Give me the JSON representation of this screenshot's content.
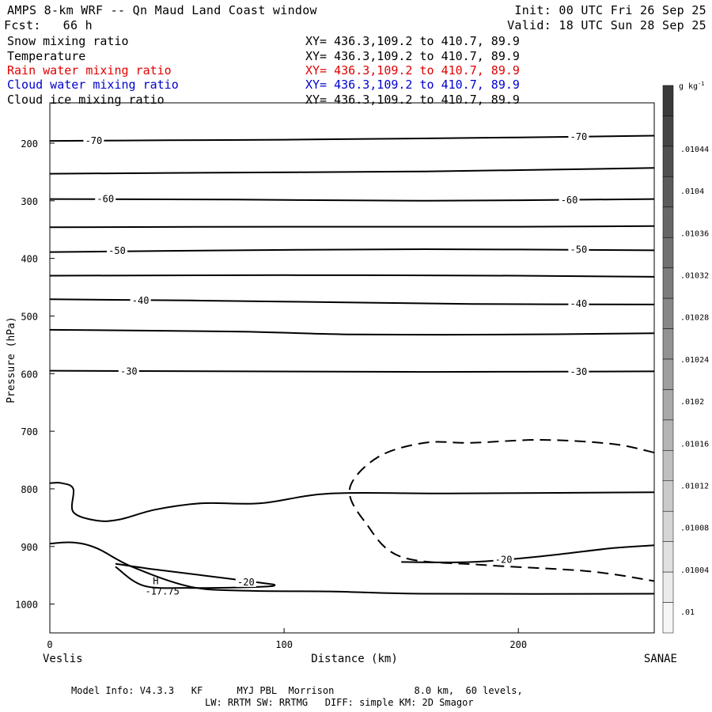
{
  "header": {
    "title": "AMPS 8-km WRF -- Qn Maud Land Coast window",
    "init": "Init: 00 UTC Fri 26 Sep 25",
    "fcst": "Fcst:   66 h",
    "valid": "Valid: 18 UTC Sun 28 Sep 25"
  },
  "legend": [
    {
      "label": "Snow mixing ratio",
      "xy": "XY= 436.3,109.2 to 410.7, 89.9",
      "color": "#000000"
    },
    {
      "label": "Temperature",
      "xy": "XY= 436.3,109.2 to 410.7, 89.9",
      "color": "#000000"
    },
    {
      "label": "Rain water mixing ratio",
      "xy": "XY= 436.3,109.2 to 410.7, 89.9",
      "color": "#e00000"
    },
    {
      "label": "Cloud water mixing ratio",
      "xy": "XY= 436.3,109.2 to 410.7, 89.9",
      "color": "#0000d0"
    },
    {
      "label": "Cloud ice mixing ratio",
      "xy": "XY= 436.3,109.2 to 410.7, 89.9",
      "color": "#000000"
    }
  ],
  "footer": {
    "model_info": "Model Info: V4.3.3   KF      MYJ PBL  Morrison              8.0 km,  60 levels,",
    "physics": "LW: RRTM SW: RRTMG   DIFF: simple KM: 2D Smagor"
  },
  "chart_data": {
    "type": "contour",
    "title": "AMPS 8-km WRF -- Qn Maud Land Coast window",
    "xlabel": "Distance (km)",
    "ylabel": "Pressure (hPa)",
    "xlim": [
      0,
      258
    ],
    "ylim": [
      1050,
      130
    ],
    "x_ticks": [
      0,
      100,
      200
    ],
    "y_ticks": [
      200,
      300,
      400,
      500,
      600,
      700,
      800,
      900,
      1000
    ],
    "y_tick_labels": [
      "200",
      "300",
      "400",
      "500",
      "600",
      "700",
      "800",
      "900",
      "1000"
    ],
    "left_endpoint_label": "Veslis",
    "right_endpoint_label": "SANAE",
    "temperature_contours": [
      {
        "level": -70,
        "label": "-70",
        "points": [
          [
            0,
            196
          ],
          [
            50,
            195
          ],
          [
            100,
            194
          ],
          [
            150,
            192
          ],
          [
            200,
            190
          ],
          [
            258,
            187
          ]
        ],
        "label_positions": [
          [
            15,
            196
          ],
          [
            222,
            189
          ]
        ]
      },
      {
        "level": -65,
        "points": [
          [
            0,
            253
          ],
          [
            80,
            251
          ],
          [
            160,
            249
          ],
          [
            258,
            243
          ]
        ]
      },
      {
        "level": -60,
        "label": "-60",
        "points": [
          [
            0,
            297
          ],
          [
            80,
            298
          ],
          [
            160,
            300
          ],
          [
            258,
            297
          ]
        ],
        "label_positions": [
          [
            20,
            297
          ],
          [
            218,
            299
          ]
        ]
      },
      {
        "level": -55,
        "points": [
          [
            0,
            346
          ],
          [
            100,
            345
          ],
          [
            200,
            345
          ],
          [
            258,
            344
          ]
        ]
      },
      {
        "level": -50,
        "label": "-50",
        "points": [
          [
            0,
            389
          ],
          [
            80,
            386
          ],
          [
            160,
            384
          ],
          [
            258,
            386
          ]
        ],
        "label_positions": [
          [
            25,
            387
          ],
          [
            222,
            385
          ]
        ]
      },
      {
        "level": -45,
        "points": [
          [
            0,
            430
          ],
          [
            100,
            429
          ],
          [
            200,
            430
          ],
          [
            258,
            432
          ]
        ]
      },
      {
        "level": -40,
        "label": "-40",
        "points": [
          [
            0,
            471
          ],
          [
            60,
            473
          ],
          [
            120,
            476
          ],
          [
            180,
            479
          ],
          [
            258,
            480
          ]
        ],
        "label_positions": [
          [
            35,
            473
          ],
          [
            222,
            479
          ]
        ]
      },
      {
        "level": -35,
        "points": [
          [
            0,
            524
          ],
          [
            80,
            527
          ],
          [
            130,
            532
          ],
          [
            200,
            532
          ],
          [
            258,
            530
          ]
        ]
      },
      {
        "level": -30,
        "label": "-30",
        "points": [
          [
            0,
            595
          ],
          [
            80,
            596
          ],
          [
            160,
            597
          ],
          [
            258,
            596
          ]
        ],
        "label_positions": [
          [
            30,
            596
          ],
          [
            222,
            597
          ]
        ]
      },
      {
        "level": -25,
        "points": [
          [
            0,
            790
          ],
          [
            5,
            790
          ],
          [
            10,
            800
          ],
          [
            10,
            840
          ],
          [
            20,
            855
          ],
          [
            30,
            853
          ],
          [
            45,
            836
          ],
          [
            65,
            825
          ],
          [
            90,
            825
          ],
          [
            120,
            808
          ],
          [
            170,
            808
          ],
          [
            258,
            806
          ]
        ]
      },
      {
        "level": -20,
        "label": "-20",
        "points": [
          [
            150,
            927
          ],
          [
            180,
            927
          ],
          [
            210,
            917
          ],
          [
            240,
            903
          ],
          [
            258,
            898
          ]
        ],
        "label_positions": [
          [
            190,
            923
          ]
        ]
      },
      {
        "level": -15,
        "points": [
          [
            0,
            895
          ],
          [
            10,
            893
          ],
          [
            20,
            903
          ],
          [
            35,
            935
          ],
          [
            60,
            970
          ],
          [
            85,
            977
          ],
          [
            120,
            978
          ],
          [
            160,
            982
          ],
          [
            258,
            982
          ]
        ]
      },
      {
        "level": -20,
        "label": "-20",
        "points": [
          [
            28,
            930
          ],
          [
            45,
            940
          ],
          [
            65,
            950
          ],
          [
            90,
            963
          ],
          [
            96,
            967
          ],
          [
            90,
            970
          ],
          [
            60,
            972
          ],
          [
            40,
            968
          ],
          [
            28,
            935
          ]
        ],
        "label_positions": [
          [
            80,
            962
          ]
        ]
      }
    ],
    "snow_mixing_ratio_dashed": {
      "level": 0.01,
      "points": [
        [
          258,
          737
        ],
        [
          240,
          722
        ],
        [
          210,
          715
        ],
        [
          180,
          720
        ],
        [
          160,
          720
        ],
        [
          140,
          745
        ],
        [
          128,
          800
        ],
        [
          135,
          860
        ],
        [
          150,
          918
        ],
        [
          185,
          932
        ],
        [
          230,
          943
        ],
        [
          258,
          960
        ]
      ]
    },
    "annotations": [
      {
        "text": "H",
        "x": 44,
        "y": 960
      },
      {
        "text": "-17.75",
        "x": 48,
        "y": 978
      }
    ],
    "colorbar": {
      "unit": "g kg",
      "unit_exponent": "-1",
      "labels": [
        ".01044",
        ".0104",
        ".01036",
        ".01032",
        ".01028",
        ".01024",
        ".0102",
        ".01016",
        ".01012",
        ".01008",
        ".01004",
        ".01"
      ],
      "segments": 18,
      "dark_color": "#3a3a3a",
      "light_color": "#f6f6f6"
    }
  }
}
